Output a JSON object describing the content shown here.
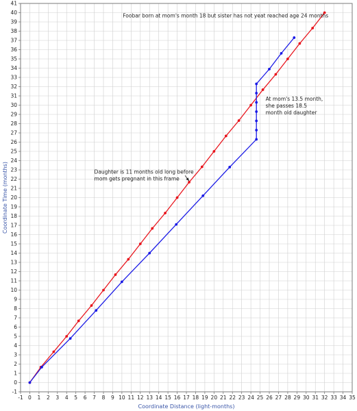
{
  "chart_data": {
    "type": "line",
    "xlabel": "Coordinate Distance (light-months)",
    "ylabel": "Coordinate Time (months)",
    "xlim": [
      -1,
      35
    ],
    "ylim": [
      -1,
      41
    ],
    "x_ticks": [
      -1,
      0,
      1,
      2,
      3,
      4,
      5,
      6,
      7,
      8,
      9,
      10,
      11,
      12,
      13,
      14,
      15,
      16,
      17,
      18,
      19,
      20,
      21,
      22,
      23,
      24,
      25,
      26,
      27,
      28,
      29,
      30,
      31,
      32,
      33,
      34,
      35
    ],
    "y_ticks": [
      -1,
      0,
      1,
      2,
      3,
      4,
      5,
      6,
      7,
      8,
      9,
      10,
      11,
      12,
      13,
      14,
      15,
      16,
      17,
      18,
      19,
      20,
      21,
      22,
      23,
      24,
      25,
      26,
      27,
      28,
      29,
      30,
      31,
      32,
      33,
      34,
      35,
      36,
      37,
      38,
      39,
      40,
      41
    ],
    "grid": true,
    "colors": {
      "red": "#e8141c",
      "blue": "#1a1ae6",
      "grid": "#cfcfcf",
      "axis_text": "#3a56a8"
    },
    "series": [
      {
        "color": "#e8141c",
        "points": [
          [
            0,
            0
          ],
          [
            1.2,
            1.67
          ],
          [
            2.6,
            3.33
          ],
          [
            4,
            5.0
          ],
          [
            5.3,
            6.67
          ],
          [
            6.7,
            8.33
          ],
          [
            8,
            10.0
          ],
          [
            9.3,
            11.67
          ],
          [
            10.7,
            13.33
          ],
          [
            12,
            15.0
          ],
          [
            13.3,
            16.67
          ],
          [
            14.7,
            18.33
          ],
          [
            16,
            20.0
          ],
          [
            17.3,
            21.67
          ],
          [
            18.7,
            23.33
          ],
          [
            20,
            25.0
          ],
          [
            21.3,
            26.67
          ],
          [
            22.7,
            28.33
          ],
          [
            24,
            30.0
          ],
          [
            25.3,
            31.67
          ],
          [
            26.7,
            33.33
          ],
          [
            28,
            35.0
          ],
          [
            29.3,
            36.67
          ],
          [
            30.7,
            38.33
          ],
          [
            32,
            40.0
          ]
        ]
      },
      {
        "color": "#1a1ae6",
        "points": [
          [
            0,
            0
          ],
          [
            1.3,
            1.67
          ],
          [
            4.4,
            4.77
          ],
          [
            7.2,
            7.8
          ],
          [
            10,
            10.9
          ],
          [
            13,
            14.0
          ],
          [
            15.9,
            17.1
          ],
          [
            18.8,
            20.2
          ],
          [
            21.7,
            23.3
          ],
          [
            24.6,
            26.3
          ],
          [
            24.6,
            27.3
          ],
          [
            24.6,
            28.3
          ],
          [
            24.6,
            29.3
          ],
          [
            24.6,
            30.3
          ],
          [
            24.6,
            31.3
          ],
          [
            24.6,
            32.3
          ],
          [
            26.0,
            33.9
          ],
          [
            27.3,
            35.6
          ],
          [
            28.7,
            37.3
          ]
        ]
      }
    ],
    "annotations": [
      {
        "lines": [
          "Foobar born at mom's month 18 but sister has not yeat reached age 24 months"
        ],
        "x": 10.1,
        "y": 39.5
      },
      {
        "lines": [
          "At mom's 13.5 month,",
          "she passes 18.5",
          "month old daughter"
        ],
        "x": 25.6,
        "y": 30.5
      },
      {
        "lines": [
          "Daughter is 11 months old long before",
          "mom gets pregnant in this frame"
        ],
        "x": 7.0,
        "y": 22.6,
        "arrow_to": [
          17.3,
          21.8
        ]
      }
    ]
  }
}
